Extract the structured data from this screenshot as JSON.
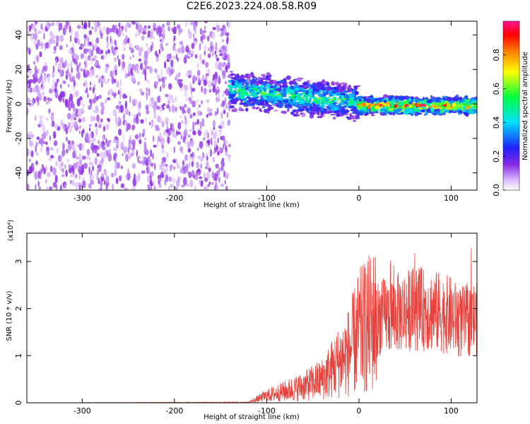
{
  "title": "C2E6.2023.224.08.58.R09",
  "chart_data": [
    {
      "type": "heatmap",
      "xlabel": "Height of straight line (km)",
      "ylabel": "Frequency (Hz)",
      "xlim": [
        -360,
        128
      ],
      "ylim": [
        -50,
        48
      ],
      "x_ticks": [
        -300,
        -200,
        -100,
        0,
        100
      ],
      "y_ticks": [
        40,
        20,
        0,
        -20,
        -40
      ],
      "colorbar": {
        "label": "Normalized spectral amplitude",
        "range": [
          0,
          1
        ],
        "ticks": [
          0.0,
          0.2,
          0.4,
          0.6,
          0.8
        ]
      },
      "features": [
        {
          "x_range": [
            -360,
            -140
          ],
          "y_range": [
            -50,
            48
          ],
          "amplitude": 0.12
        },
        {
          "x_range": [
            -140,
            0
          ],
          "y_center": 5,
          "width": 10,
          "amplitude": 0.45
        },
        {
          "x_range": [
            0,
            128
          ],
          "y_center": -1,
          "width": 5,
          "amplitude": 0.75
        }
      ]
    },
    {
      "type": "line",
      "xlabel": "Height of straight line (km)",
      "ylabel": "SNR (10 * v/v)",
      "scale_label": "(x10⁴)",
      "xlim": [
        -360,
        128
      ],
      "ylim": [
        0,
        3.6
      ],
      "x_ticks": [
        -300,
        -200,
        -100,
        0,
        100
      ],
      "y_ticks": [
        0,
        1,
        2,
        3
      ],
      "series": [
        {
          "color": "#e8403a",
          "points": [
            [
              -360,
              0.0
            ],
            [
              -120,
              0.01
            ],
            [
              -110,
              0.08
            ],
            [
              -100,
              0.15
            ],
            [
              -80,
              0.25
            ],
            [
              -60,
              0.35
            ],
            [
              -40,
              0.5
            ],
            [
              -30,
              0.7
            ],
            [
              -20,
              0.9
            ],
            [
              -10,
              1.1
            ],
            [
              0,
              1.5
            ],
            [
              20,
              1.8
            ],
            [
              30,
              1.85
            ],
            [
              50,
              1.95
            ],
            [
              60,
              2.0
            ],
            [
              80,
              1.95
            ],
            [
              100,
              1.85
            ],
            [
              110,
              1.7
            ],
            [
              128,
              1.8
            ]
          ]
        }
      ]
    }
  ]
}
